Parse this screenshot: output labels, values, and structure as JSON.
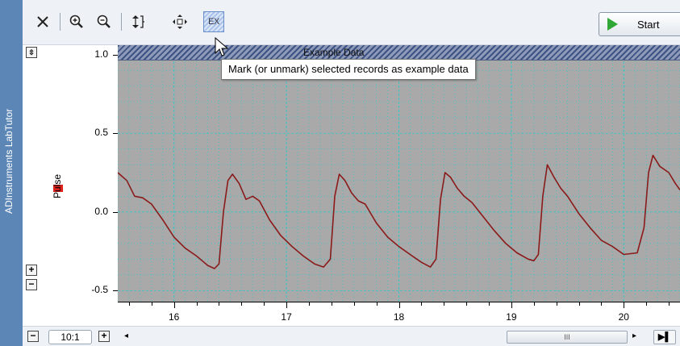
{
  "app": {
    "side_label": "ADInstruments LabTutor"
  },
  "toolbar": {
    "buttons": [
      {
        "name": "close-icon"
      },
      {
        "name": "zoom-in-icon"
      },
      {
        "name": "zoom-out-icon"
      },
      {
        "name": "autoscale-icon"
      },
      {
        "name": "pan-icon"
      },
      {
        "name": "example-data-icon",
        "label": "EX",
        "selected": true
      }
    ],
    "start_label": "Start"
  },
  "tooltip": {
    "text": "Mark (or unmark) selected records as example data"
  },
  "example_band": {
    "label": "Example Data"
  },
  "colors": {
    "trace": "#8b1a1a",
    "channel_swatch": "#e0201a",
    "plot_background": "#a9a9a9",
    "grid": "#37c6c6",
    "side_strip": "#5b86b6",
    "start_icon": "#2fa836"
  },
  "channel": {
    "label": "Pulse"
  },
  "axis_buttons": {
    "plus": "+",
    "minus": "−"
  },
  "bottom_bar": {
    "zoom_ratio": "10:1",
    "minus": "−",
    "plus": "+",
    "scroll_grip": "III",
    "end_icon": "▶▌"
  },
  "chart_data": {
    "type": "line",
    "series": [
      {
        "name": "Pulse",
        "x": [
          15.5,
          15.58,
          15.65,
          15.72,
          15.8,
          15.9,
          16.0,
          16.1,
          16.2,
          16.3,
          16.36,
          16.4,
          16.44,
          16.48,
          16.52,
          16.58,
          16.64,
          16.7,
          16.76,
          16.85,
          16.95,
          17.05,
          17.15,
          17.25,
          17.33,
          17.39,
          17.43,
          17.47,
          17.52,
          17.58,
          17.64,
          17.7,
          17.8,
          17.9,
          18.0,
          18.1,
          18.2,
          18.28,
          18.33,
          18.37,
          18.41,
          18.46,
          18.52,
          18.58,
          18.65,
          18.75,
          18.85,
          18.95,
          19.05,
          19.15,
          19.2,
          19.24,
          19.28,
          19.32,
          19.38,
          19.44,
          19.5,
          19.6,
          19.7,
          19.8,
          19.9,
          20.0,
          20.12,
          20.18,
          20.22,
          20.26,
          20.32,
          20.4,
          20.46,
          20.5
        ],
        "y": [
          0.25,
          0.2,
          0.1,
          0.09,
          0.05,
          -0.05,
          -0.16,
          -0.23,
          -0.28,
          -0.34,
          -0.36,
          -0.33,
          0.0,
          0.2,
          0.24,
          0.18,
          0.08,
          0.1,
          0.07,
          -0.05,
          -0.15,
          -0.22,
          -0.28,
          -0.33,
          -0.35,
          -0.3,
          0.1,
          0.24,
          0.2,
          0.12,
          0.07,
          0.05,
          -0.07,
          -0.16,
          -0.22,
          -0.27,
          -0.32,
          -0.35,
          -0.3,
          0.08,
          0.25,
          0.22,
          0.15,
          0.1,
          0.06,
          -0.03,
          -0.12,
          -0.2,
          -0.26,
          -0.3,
          -0.31,
          -0.27,
          0.1,
          0.3,
          0.22,
          0.15,
          0.1,
          -0.01,
          -0.1,
          -0.18,
          -0.22,
          -0.27,
          -0.26,
          -0.1,
          0.25,
          0.36,
          0.29,
          0.25,
          0.18,
          0.14
        ]
      }
    ],
    "xticks": [
      16,
      17,
      18,
      19,
      20
    ],
    "yticks": [
      {
        "value": 1.0,
        "label": "1.0"
      },
      {
        "value": 0.5,
        "label": "0.5"
      },
      {
        "value": 0.0,
        "label": "0.0"
      },
      {
        "value": -0.5,
        "label": "-0.5"
      }
    ],
    "xlim": [
      15.5,
      20.5
    ],
    "ylim": [
      -0.57,
      1.06
    ],
    "grid": true
  }
}
